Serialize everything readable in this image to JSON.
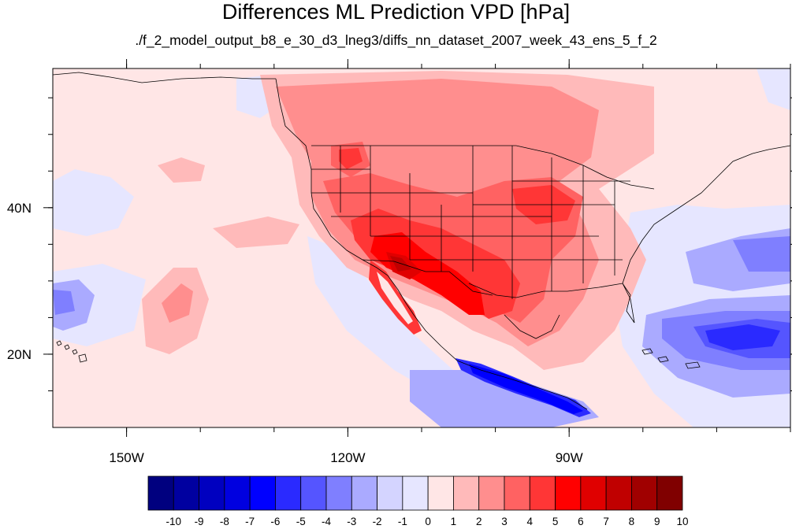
{
  "title": "Differences ML Prediction VPD [hPa]",
  "subtitle": "./f_2_model_output_b8_e_30_d3_lneg3/diffs_nn_dataset_2007_week_43_ens_5_f_2",
  "map": {
    "lon_range": [
      -160,
      -60
    ],
    "lat_range": [
      10,
      59
    ],
    "lon_ticks": [
      {
        "value": -150,
        "label": "150W"
      },
      {
        "value": -120,
        "label": "120W"
      },
      {
        "value": -90,
        "label": "90W"
      }
    ],
    "lat_ticks": [
      {
        "value": 40,
        "label": "40N"
      },
      {
        "value": 20,
        "label": "20N"
      }
    ],
    "background_color": "#ffe6e6"
  },
  "colorbar": {
    "labels": [
      "-10",
      "-9",
      "-8",
      "-7",
      "-6",
      "-5",
      "-4",
      "-3",
      "-2",
      "-1",
      "0",
      "1",
      "2",
      "3",
      "4",
      "5",
      "6",
      "7",
      "8",
      "9",
      "10"
    ],
    "colors": [
      "#00007f",
      "#0000a0",
      "#0000c0",
      "#0000e0",
      "#0000ff",
      "#2a2aff",
      "#5555ff",
      "#7f7fff",
      "#aaaaff",
      "#d4d4ff",
      "#e6e6ff",
      "#ffe6e6",
      "#ffbaba",
      "#ff8e8e",
      "#ff6262",
      "#ff3636",
      "#ff0000",
      "#e00000",
      "#c00000",
      "#a00000",
      "#800000"
    ]
  }
}
